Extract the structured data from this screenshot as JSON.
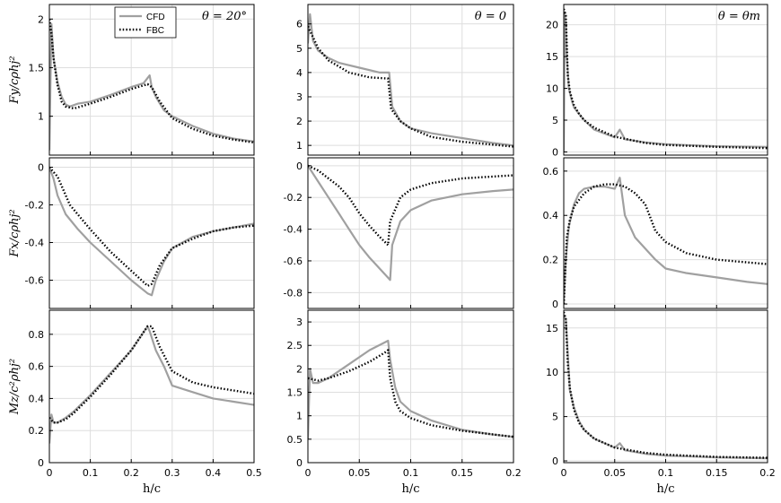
{
  "colors": {
    "cfd": "#a0a0a0",
    "fbc": "#000000",
    "grid": "#dedede",
    "axes": "#000000"
  },
  "legend": {
    "cfd": "CFD",
    "fbc": "FBC"
  },
  "column_titles": [
    "θ = 20°",
    "θ = 0",
    "θ = θm"
  ],
  "row_ylabels": [
    "Fy/cρhj²",
    "Fx/cρhj²",
    "Mz/c²ρhj²"
  ],
  "xlabel": "h/c",
  "chart_data": [
    {
      "type": "line",
      "title": "θ = 20°",
      "ylabel": "Fy/cρhj²",
      "xlabel": "",
      "xlim": [
        0,
        0.5
      ],
      "ylim": [
        0.6,
        2.15
      ],
      "xticks": [
        0,
        0.1,
        0.2,
        0.3,
        0.4,
        0.5
      ],
      "yticks": [
        1,
        1.5,
        2
      ],
      "grid": true,
      "legend": "top",
      "series": [
        {
          "name": "CFD",
          "x": [
            0,
            0.005,
            0.01,
            0.02,
            0.03,
            0.04,
            0.05,
            0.07,
            0.1,
            0.15,
            0.2,
            0.23,
            0.245,
            0.25,
            0.26,
            0.28,
            0.3,
            0.35,
            0.4,
            0.45,
            0.5
          ],
          "y": [
            0.65,
            1.95,
            1.6,
            1.35,
            1.2,
            1.12,
            1.1,
            1.13,
            1.15,
            1.22,
            1.3,
            1.34,
            1.42,
            1.3,
            1.2,
            1.06,
            1.0,
            0.9,
            0.82,
            0.77,
            0.74
          ]
        },
        {
          "name": "FBC",
          "x": [
            0,
            0.005,
            0.01,
            0.02,
            0.03,
            0.04,
            0.06,
            0.1,
            0.15,
            0.2,
            0.24,
            0.25,
            0.27,
            0.3,
            0.35,
            0.4,
            0.45,
            0.5
          ],
          "y": [
            2.0,
            1.85,
            1.6,
            1.32,
            1.15,
            1.1,
            1.08,
            1.13,
            1.2,
            1.28,
            1.33,
            1.3,
            1.15,
            0.98,
            0.87,
            0.8,
            0.76,
            0.73
          ]
        }
      ]
    },
    {
      "type": "line",
      "title": "θ = 0",
      "ylabel": "",
      "xlabel": "",
      "xlim": [
        0,
        0.2
      ],
      "ylim": [
        0.6,
        6.8
      ],
      "xticks": [
        0,
        0.05,
        0.1,
        0.15,
        0.2
      ],
      "yticks": [
        1,
        2,
        3,
        4,
        5,
        6
      ],
      "grid": true,
      "series": [
        {
          "name": "CFD",
          "x": [
            0,
            0.002,
            0.005,
            0.01,
            0.02,
            0.03,
            0.05,
            0.07,
            0.079,
            0.082,
            0.09,
            0.1,
            0.12,
            0.15,
            0.18,
            0.2
          ],
          "y": [
            5.2,
            6.4,
            5.3,
            4.9,
            4.6,
            4.4,
            4.2,
            4.0,
            4.0,
            2.6,
            2.0,
            1.7,
            1.5,
            1.3,
            1.1,
            1.0
          ]
        },
        {
          "name": "FBC",
          "x": [
            0,
            0.01,
            0.02,
            0.04,
            0.06,
            0.078,
            0.081,
            0.09,
            0.1,
            0.12,
            0.15,
            0.2
          ],
          "y": [
            5.9,
            5.0,
            4.5,
            4.0,
            3.8,
            3.75,
            2.5,
            2.0,
            1.7,
            1.35,
            1.15,
            0.95
          ]
        }
      ]
    },
    {
      "type": "line",
      "title": "θ = θm",
      "ylabel": "",
      "xlabel": "",
      "xlim": [
        0,
        0.2
      ],
      "ylim": [
        -0.5,
        23.2
      ],
      "xticks": [
        0,
        0.05,
        0.1,
        0.15,
        0.2
      ],
      "yticks": [
        0,
        5,
        10,
        15,
        20
      ],
      "grid": true,
      "series": [
        {
          "name": "CFD",
          "x": [
            0,
            0.001,
            0.002,
            0.003,
            0.005,
            0.008,
            0.01,
            0.015,
            0.02,
            0.03,
            0.05,
            0.055,
            0.06,
            0.08,
            0.1,
            0.15,
            0.2
          ],
          "y": [
            0,
            22,
            20,
            15,
            10,
            8,
            7,
            6,
            5,
            3.5,
            2.3,
            3.5,
            2.0,
            1.5,
            1.2,
            0.9,
            0.8
          ]
        },
        {
          "name": "FBC",
          "x": [
            0,
            0.002,
            0.004,
            0.006,
            0.01,
            0.015,
            0.02,
            0.03,
            0.05,
            0.08,
            0.1,
            0.15,
            0.2
          ],
          "y": [
            22.5,
            21.5,
            12,
            9.5,
            7.3,
            6.0,
            5.0,
            3.8,
            2.4,
            1.4,
            1.1,
            0.8,
            0.6
          ]
        }
      ]
    },
    {
      "type": "line",
      "title": "",
      "ylabel": "Fx/cρhj²",
      "xlabel": "",
      "xlim": [
        0,
        0.5
      ],
      "ylim": [
        -0.75,
        0.05
      ],
      "xticks": [
        0,
        0.1,
        0.2,
        0.3,
        0.4,
        0.5
      ],
      "yticks": [
        -0.6,
        -0.4,
        -0.2,
        0
      ],
      "grid": true,
      "series": [
        {
          "name": "CFD",
          "x": [
            0,
            0.01,
            0.02,
            0.04,
            0.07,
            0.1,
            0.15,
            0.2,
            0.24,
            0.25,
            0.26,
            0.28,
            0.3,
            0.35,
            0.4,
            0.45,
            0.5
          ],
          "y": [
            0,
            -0.06,
            -0.15,
            -0.25,
            -0.33,
            -0.4,
            -0.5,
            -0.6,
            -0.67,
            -0.68,
            -0.6,
            -0.5,
            -0.43,
            -0.37,
            -0.34,
            -0.32,
            -0.3
          ]
        },
        {
          "name": "FBC",
          "x": [
            0,
            0.02,
            0.03,
            0.05,
            0.1,
            0.15,
            0.2,
            0.24,
            0.25,
            0.27,
            0.3,
            0.35,
            0.4,
            0.45,
            0.5
          ],
          "y": [
            0,
            -0.05,
            -0.1,
            -0.2,
            -0.33,
            -0.45,
            -0.55,
            -0.63,
            -0.62,
            -0.52,
            -0.43,
            -0.38,
            -0.34,
            -0.32,
            -0.31
          ]
        }
      ]
    },
    {
      "type": "line",
      "title": "",
      "ylabel": "",
      "xlabel": "",
      "xlim": [
        0,
        0.2
      ],
      "ylim": [
        -0.9,
        0.05
      ],
      "xticks": [
        0,
        0.05,
        0.1,
        0.15,
        0.2
      ],
      "yticks": [
        -0.8,
        -0.6,
        -0.4,
        -0.2,
        0
      ],
      "grid": true,
      "series": [
        {
          "name": "CFD",
          "x": [
            0,
            0.01,
            0.02,
            0.03,
            0.04,
            0.05,
            0.06,
            0.07,
            0.08,
            0.082,
            0.09,
            0.1,
            0.12,
            0.15,
            0.18,
            0.2
          ],
          "y": [
            0,
            -0.1,
            -0.2,
            -0.3,
            -0.4,
            -0.5,
            -0.58,
            -0.65,
            -0.72,
            -0.5,
            -0.35,
            -0.28,
            -0.22,
            -0.18,
            -0.16,
            -0.15
          ]
        },
        {
          "name": "FBC",
          "x": [
            0,
            0.01,
            0.02,
            0.03,
            0.04,
            0.05,
            0.06,
            0.07,
            0.078,
            0.08,
            0.09,
            0.1,
            0.12,
            0.15,
            0.2
          ],
          "y": [
            0,
            -0.03,
            -0.08,
            -0.13,
            -0.2,
            -0.3,
            -0.38,
            -0.45,
            -0.5,
            -0.35,
            -0.2,
            -0.15,
            -0.11,
            -0.08,
            -0.06
          ]
        }
      ]
    },
    {
      "type": "line",
      "title": "",
      "ylabel": "",
      "xlabel": "",
      "xlim": [
        0,
        0.2
      ],
      "ylim": [
        -0.02,
        0.66
      ],
      "xticks": [
        0,
        0.05,
        0.1,
        0.15,
        0.2
      ],
      "yticks": [
        0,
        0.2,
        0.4,
        0.6
      ],
      "grid": true,
      "series": [
        {
          "name": "CFD",
          "x": [
            0,
            0.002,
            0.005,
            0.01,
            0.015,
            0.02,
            0.03,
            0.04,
            0.05,
            0.055,
            0.06,
            0.065,
            0.07,
            0.08,
            0.09,
            0.1,
            0.12,
            0.15,
            0.18,
            0.2
          ],
          "y": [
            0,
            0.2,
            0.35,
            0.45,
            0.5,
            0.52,
            0.53,
            0.53,
            0.52,
            0.57,
            0.4,
            0.35,
            0.3,
            0.25,
            0.2,
            0.16,
            0.14,
            0.12,
            0.1,
            0.09
          ]
        },
        {
          "name": "FBC",
          "x": [
            0,
            0.003,
            0.006,
            0.01,
            0.02,
            0.03,
            0.04,
            0.05,
            0.06,
            0.07,
            0.08,
            0.09,
            0.1,
            0.12,
            0.15,
            0.2
          ],
          "y": [
            0,
            0.3,
            0.38,
            0.44,
            0.5,
            0.53,
            0.54,
            0.54,
            0.53,
            0.5,
            0.45,
            0.33,
            0.28,
            0.23,
            0.2,
            0.18
          ]
        }
      ]
    },
    {
      "type": "line",
      "title": "",
      "ylabel": "Mz/c²ρhj²",
      "xlabel": "h/c",
      "xlim": [
        0,
        0.5
      ],
      "ylim": [
        0,
        0.95
      ],
      "xticks": [
        0,
        0.1,
        0.2,
        0.3,
        0.4,
        0.5
      ],
      "yticks": [
        0,
        0.2,
        0.4,
        0.6,
        0.8
      ],
      "grid": true,
      "series": [
        {
          "name": "CFD",
          "x": [
            0,
            0.005,
            0.01,
            0.02,
            0.04,
            0.06,
            0.1,
            0.15,
            0.2,
            0.24,
            0.245,
            0.26,
            0.28,
            0.3,
            0.35,
            0.4,
            0.45,
            0.5
          ],
          "y": [
            0.12,
            0.3,
            0.25,
            0.25,
            0.28,
            0.32,
            0.42,
            0.56,
            0.7,
            0.85,
            0.82,
            0.7,
            0.6,
            0.48,
            0.44,
            0.4,
            0.38,
            0.36
          ]
        },
        {
          "name": "FBC",
          "x": [
            0,
            0.01,
            0.02,
            0.04,
            0.06,
            0.1,
            0.15,
            0.2,
            0.24,
            0.25,
            0.27,
            0.3,
            0.35,
            0.4,
            0.45,
            0.5
          ],
          "y": [
            0.28,
            0.25,
            0.25,
            0.27,
            0.31,
            0.41,
            0.55,
            0.7,
            0.85,
            0.85,
            0.72,
            0.57,
            0.5,
            0.47,
            0.45,
            0.43
          ]
        }
      ]
    },
    {
      "type": "line",
      "title": "",
      "ylabel": "",
      "xlabel": "h/c",
      "xlim": [
        0,
        0.2
      ],
      "ylim": [
        0,
        3.25
      ],
      "xticks": [
        0,
        0.05,
        0.1,
        0.15,
        0.2
      ],
      "yticks": [
        0,
        0.5,
        1,
        1.5,
        2,
        2.5,
        3
      ],
      "grid": true,
      "series": [
        {
          "name": "CFD",
          "x": [
            0,
            0.002,
            0.005,
            0.01,
            0.02,
            0.04,
            0.06,
            0.078,
            0.08,
            0.085,
            0.09,
            0.1,
            0.12,
            0.15,
            0.18,
            0.2
          ],
          "y": [
            0.5,
            2.0,
            1.7,
            1.7,
            1.8,
            2.1,
            2.4,
            2.6,
            2.2,
            1.6,
            1.3,
            1.1,
            0.9,
            0.7,
            0.6,
            0.55
          ]
        },
        {
          "name": "FBC",
          "x": [
            0,
            0.01,
            0.02,
            0.04,
            0.06,
            0.075,
            0.078,
            0.08,
            0.085,
            0.09,
            0.1,
            0.12,
            0.15,
            0.2
          ],
          "y": [
            1.8,
            1.75,
            1.8,
            1.95,
            2.15,
            2.35,
            2.4,
            1.8,
            1.3,
            1.1,
            0.95,
            0.8,
            0.68,
            0.55
          ]
        }
      ]
    },
    {
      "type": "line",
      "title": "",
      "ylabel": "",
      "xlabel": "h/c",
      "xlim": [
        0,
        0.2
      ],
      "ylim": [
        -0.2,
        17
      ],
      "xticks": [
        0,
        0.05,
        0.1,
        0.15,
        0.2
      ],
      "yticks": [
        0,
        5,
        10,
        15
      ],
      "grid": true,
      "series": [
        {
          "name": "CFD",
          "x": [
            0,
            0.002,
            0.004,
            0.006,
            0.01,
            0.015,
            0.02,
            0.03,
            0.05,
            0.055,
            0.06,
            0.08,
            0.1,
            0.15,
            0.2
          ],
          "y": [
            16.5,
            16,
            12,
            8,
            6,
            4.5,
            3.5,
            2.5,
            1.5,
            2.0,
            1.2,
            0.8,
            0.6,
            0.4,
            0.3
          ]
        },
        {
          "name": "FBC",
          "x": [
            0,
            0.002,
            0.004,
            0.006,
            0.01,
            0.015,
            0.02,
            0.03,
            0.05,
            0.08,
            0.1,
            0.15,
            0.2
          ],
          "y": [
            16.8,
            16,
            11,
            8.2,
            5.8,
            4.3,
            3.5,
            2.5,
            1.5,
            0.9,
            0.7,
            0.45,
            0.35
          ]
        }
      ]
    }
  ]
}
